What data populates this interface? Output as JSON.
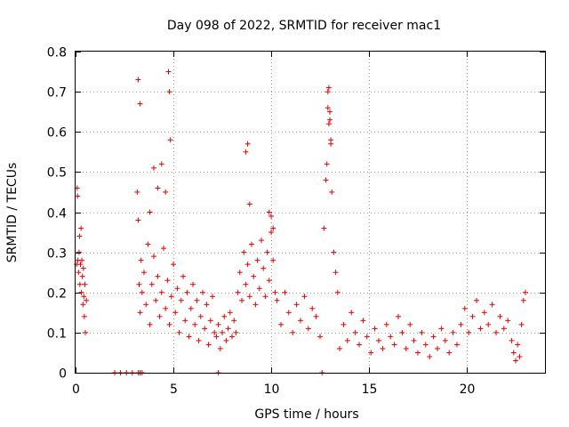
{
  "chart_data": {
    "type": "scatter",
    "title": "Day 098 of 2022, SRMTID for receiver mac1",
    "xlabel": "GPS time / hours",
    "ylabel": "SRMTID / TECUs",
    "xlim": [
      0,
      24
    ],
    "ylim": [
      0,
      0.8
    ],
    "xticks": [
      0,
      5,
      10,
      15,
      20
    ],
    "xtick_labels": [
      "0",
      "5",
      "10",
      "15",
      "20"
    ],
    "yticks": [
      0,
      0.1,
      0.2,
      0.3,
      0.4,
      0.5,
      0.6,
      0.7,
      0.8
    ],
    "ytick_labels": [
      "0",
      "0.1",
      "0.2",
      "0.3",
      "0.4",
      "0.5",
      "0.6",
      "0.7",
      "0.8"
    ],
    "grid": true,
    "marker": "plus",
    "color": "#e00000",
    "series": [
      {
        "name": "SRMTID",
        "x": [
          0.05,
          0.08,
          0.1,
          0.12,
          0.15,
          0.18,
          0.2,
          0.22,
          0.25,
          0.28,
          0.3,
          0.32,
          0.35,
          0.38,
          0.4,
          0.42,
          0.45,
          0.48,
          0.5,
          0.55,
          2.0,
          2.3,
          2.6,
          2.9,
          3.2,
          3.3,
          3.4,
          3.15,
          3.2,
          3.25,
          3.3,
          3.35,
          3.4,
          3.5,
          3.6,
          3.7,
          3.8,
          3.9,
          4.0,
          4.1,
          4.2,
          4.3,
          4.4,
          4.5,
          4.6,
          4.7,
          4.8,
          4.9,
          5.0,
          5.1,
          5.2,
          5.3,
          5.4,
          5.5,
          5.6,
          5.7,
          5.8,
          5.9,
          6.0,
          6.1,
          6.2,
          6.3,
          6.4,
          6.5,
          6.6,
          6.7,
          6.8,
          6.9,
          7.0,
          7.1,
          3.2,
          3.3,
          4.75,
          4.8,
          4.85,
          4.0,
          4.2,
          4.4,
          3.8,
          4.6,
          7.2,
          7.3,
          7.4,
          7.5,
          7.6,
          7.7,
          7.8,
          7.9,
          8.0,
          8.1,
          8.2,
          8.3,
          8.4,
          8.5,
          8.6,
          8.7,
          8.8,
          8.9,
          9.0,
          9.1,
          9.2,
          9.3,
          9.4,
          9.5,
          9.6,
          9.7,
          9.8,
          9.9,
          10.0,
          10.1,
          10.2,
          8.7,
          8.8,
          8.9,
          9.9,
          10.0,
          10.1,
          10.3,
          10.5,
          10.7,
          10.9,
          11.1,
          11.3,
          11.5,
          11.7,
          11.9,
          12.1,
          12.3,
          12.5,
          12.7,
          12.8,
          12.85,
          12.9,
          12.95,
          13.0,
          13.05,
          13.1,
          13.2,
          13.3,
          13.4,
          12.9,
          13.0,
          12.95,
          13.05,
          13.5,
          13.7,
          13.9,
          14.1,
          14.3,
          14.5,
          14.7,
          14.9,
          15.1,
          15.3,
          15.5,
          15.7,
          15.9,
          16.1,
          16.3,
          16.5,
          16.7,
          16.9,
          17.1,
          17.3,
          17.5,
          17.7,
          17.9,
          18.1,
          18.3,
          18.5,
          18.7,
          18.9,
          19.1,
          19.3,
          19.5,
          19.7,
          19.9,
          20.1,
          20.3,
          20.5,
          20.7,
          20.9,
          21.1,
          21.3,
          21.5,
          21.7,
          21.9,
          22.1,
          22.3,
          22.4,
          22.5,
          22.6,
          22.7,
          22.8,
          22.9,
          23.0,
          7.3,
          12.6,
          3.3
        ],
        "y": [
          0.27,
          0.46,
          0.44,
          0.28,
          0.25,
          0.3,
          0.34,
          0.22,
          0.27,
          0.36,
          0.2,
          0.28,
          0.24,
          0.17,
          0.26,
          0.19,
          0.14,
          0.22,
          0.1,
          0.18,
          0.0,
          0.0,
          0.0,
          0.0,
          0.0,
          0.0,
          0.0,
          0.45,
          0.38,
          0.22,
          0.15,
          0.28,
          0.2,
          0.25,
          0.17,
          0.32,
          0.12,
          0.22,
          0.29,
          0.18,
          0.24,
          0.14,
          0.2,
          0.31,
          0.16,
          0.23,
          0.12,
          0.19,
          0.27,
          0.15,
          0.21,
          0.1,
          0.18,
          0.24,
          0.13,
          0.2,
          0.09,
          0.16,
          0.22,
          0.12,
          0.18,
          0.08,
          0.14,
          0.2,
          0.11,
          0.17,
          0.07,
          0.13,
          0.19,
          0.1,
          0.73,
          0.67,
          0.75,
          0.7,
          0.58,
          0.51,
          0.46,
          0.52,
          0.4,
          0.45,
          0.09,
          0.12,
          0.06,
          0.1,
          0.14,
          0.08,
          0.11,
          0.15,
          0.09,
          0.13,
          0.1,
          0.2,
          0.25,
          0.18,
          0.3,
          0.22,
          0.27,
          0.19,
          0.32,
          0.24,
          0.17,
          0.28,
          0.21,
          0.33,
          0.26,
          0.19,
          0.3,
          0.23,
          0.35,
          0.28,
          0.2,
          0.55,
          0.57,
          0.42,
          0.4,
          0.39,
          0.36,
          0.18,
          0.12,
          0.2,
          0.15,
          0.1,
          0.17,
          0.13,
          0.19,
          0.11,
          0.16,
          0.14,
          0.09,
          0.36,
          0.48,
          0.52,
          0.66,
          0.71,
          0.63,
          0.57,
          0.45,
          0.3,
          0.25,
          0.2,
          0.7,
          0.65,
          0.62,
          0.58,
          0.06,
          0.12,
          0.08,
          0.15,
          0.1,
          0.07,
          0.13,
          0.09,
          0.05,
          0.11,
          0.08,
          0.06,
          0.12,
          0.09,
          0.07,
          0.14,
          0.1,
          0.06,
          0.12,
          0.08,
          0.05,
          0.1,
          0.07,
          0.04,
          0.09,
          0.06,
          0.11,
          0.08,
          0.05,
          0.1,
          0.07,
          0.12,
          0.16,
          0.1,
          0.14,
          0.18,
          0.11,
          0.15,
          0.12,
          0.17,
          0.1,
          0.14,
          0.11,
          0.13,
          0.08,
          0.05,
          0.03,
          0.07,
          0.04,
          0.12,
          0.18,
          0.2,
          0.0,
          0.0,
          0.0
        ]
      }
    ]
  }
}
